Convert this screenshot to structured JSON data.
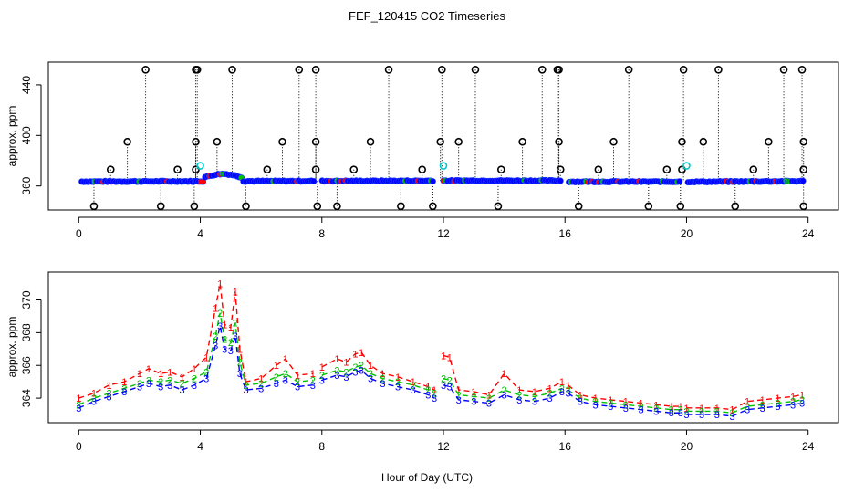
{
  "page": {
    "title": "FEF_120415  CO2 Timeseries",
    "xlabel": "Hour of Day (UTC)"
  },
  "colors": {
    "flagged": "#000000",
    "flagged_alt": "#00c8c8",
    "mean": "#0000ff",
    "s1": "#ff0000",
    "s2": "#00c000",
    "s3": "#0000ff",
    "axis": "#000000"
  },
  "chart_data": [
    {
      "type": "scatter",
      "panel": "top",
      "title": "FEF_120415  CO2 Timeseries",
      "ylabel": "approx. ppm",
      "xlim": [
        -1.0,
        25.0
      ],
      "ylim": [
        341,
        458
      ],
      "xticks": [
        0,
        4,
        8,
        12,
        16,
        20,
        24
      ],
      "yticks": [
        360,
        400,
        440
      ],
      "grid": false,
      "marker_sets": [
        {
          "name": "high flagged readings (~452)",
          "color": "black",
          "marker": "circle",
          "y": 452,
          "x": [
            2.2,
            3.85,
            3.9,
            5.05,
            7.25,
            7.8,
            10.2,
            11.95,
            13.05,
            15.25,
            15.75,
            15.8,
            18.1,
            19.9,
            21.05,
            23.2,
            23.8
          ]
        },
        {
          "name": "mid flagged readings (~395)",
          "color": "black",
          "marker": "circle",
          "y": 395,
          "x": [
            1.6,
            3.85,
            4.55,
            6.7,
            7.8,
            9.6,
            11.9,
            12.5,
            14.6,
            15.8,
            17.6,
            19.85,
            20.55,
            22.7,
            23.85
          ]
        },
        {
          "name": "low-mid flagged readings (~373)",
          "color": "black",
          "marker": "circle",
          "y": 373,
          "x": [
            1.05,
            3.25,
            3.85,
            6.2,
            7.8,
            9.05,
            11.3,
            13.9,
            15.85,
            17.1,
            19.35,
            19.85,
            22.2,
            23.85
          ]
        },
        {
          "name": "low flagged readings (~344)",
          "color": "black",
          "marker": "circle",
          "y": 344,
          "x": [
            0.5,
            2.7,
            3.8,
            5.5,
            7.85,
            8.5,
            10.6,
            11.65,
            13.8,
            16.45,
            18.75,
            19.8,
            21.6,
            23.85
          ]
        },
        {
          "name": "alternate flag (cyan)",
          "color": "cyan",
          "marker": "circle",
          "x": [
            4.0,
            12.0,
            20.0
          ],
          "y": [
            376,
            376,
            376
          ]
        }
      ],
      "baseline_series": {
        "name": "CO2 measurements",
        "color": "blue",
        "marker": "circle",
        "y_range": [
          362,
          370
        ],
        "x_range": [
          0.1,
          23.9
        ]
      }
    },
    {
      "type": "line",
      "panel": "bottom",
      "ylabel": "approx. ppm",
      "xlim": [
        -1.0,
        25.0
      ],
      "ylim": [
        362.5,
        371.7
      ],
      "xticks": [
        0,
        4,
        8,
        12,
        16,
        20,
        24
      ],
      "yticks": [
        364,
        366,
        368,
        370
      ],
      "grid": false,
      "gap_hours": [
        [
          7.8,
          8.0
        ],
        [
          11.7,
          12.0
        ],
        [
          15.9,
          16.1
        ],
        [
          19.8,
          20.0
        ]
      ],
      "series": [
        {
          "name": "1",
          "color": "red",
          "marker": "digit 1",
          "x": [
            0.0,
            0.5,
            1.0,
            1.5,
            2.0,
            2.3,
            2.7,
            3.0,
            3.4,
            3.8,
            4.2,
            4.5,
            4.65,
            4.8,
            5.0,
            5.15,
            5.3,
            5.5,
            6.0,
            6.5,
            6.8,
            7.2,
            7.7,
            8.0,
            8.5,
            8.8,
            9.1,
            9.3,
            9.6,
            10.0,
            10.5,
            11.0,
            11.5,
            11.7,
            12.0,
            12.2,
            12.5,
            13.0,
            13.5,
            14.0,
            14.5,
            15.0,
            15.5,
            15.9,
            16.1,
            16.5,
            17.0,
            17.5,
            18.0,
            18.5,
            19.0,
            19.5,
            19.8,
            20.0,
            20.5,
            21.0,
            21.5,
            22.0,
            22.5,
            23.0,
            23.5,
            23.8
          ],
          "values": [
            364.0,
            364.3,
            364.8,
            365.0,
            365.5,
            365.8,
            365.5,
            365.6,
            365.3,
            365.8,
            366.5,
            369.5,
            371.0,
            368.5,
            368.3,
            370.5,
            367.0,
            365.0,
            365.2,
            366.0,
            366.4,
            365.4,
            365.5,
            365.9,
            366.4,
            366.2,
            366.7,
            366.8,
            366.0,
            365.5,
            365.3,
            365.0,
            364.7,
            364.5,
            366.6,
            366.5,
            364.5,
            364.4,
            364.2,
            365.5,
            364.5,
            364.4,
            364.6,
            365.0,
            364.8,
            364.2,
            364.0,
            363.9,
            363.8,
            363.7,
            363.6,
            363.5,
            363.5,
            363.4,
            363.4,
            363.4,
            363.3,
            363.8,
            363.9,
            364.0,
            364.1,
            364.2
          ]
        },
        {
          "name": "2",
          "color": "green",
          "marker": "digit 2",
          "x": [
            0.0,
            0.5,
            1.0,
            1.5,
            2.0,
            2.3,
            2.7,
            3.0,
            3.4,
            3.8,
            4.2,
            4.5,
            4.65,
            4.8,
            5.0,
            5.15,
            5.3,
            5.5,
            6.0,
            6.5,
            6.8,
            7.2,
            7.7,
            8.0,
            8.5,
            8.8,
            9.1,
            9.3,
            9.6,
            10.0,
            10.5,
            11.0,
            11.5,
            11.7,
            12.0,
            12.2,
            12.5,
            13.0,
            13.5,
            14.0,
            14.5,
            15.0,
            15.5,
            15.9,
            16.1,
            16.5,
            17.0,
            17.5,
            18.0,
            18.5,
            19.0,
            19.5,
            19.8,
            20.0,
            20.5,
            21.0,
            21.5,
            22.0,
            22.5,
            23.0,
            23.5,
            23.8
          ],
          "values": [
            363.6,
            364.0,
            364.3,
            364.6,
            364.9,
            365.1,
            365.0,
            365.1,
            364.9,
            365.2,
            365.6,
            367.8,
            369.2,
            367.6,
            367.4,
            368.6,
            366.2,
            364.8,
            364.9,
            365.3,
            365.5,
            365.0,
            365.1,
            365.4,
            365.7,
            365.6,
            365.9,
            366.0,
            365.5,
            365.2,
            365.0,
            364.8,
            364.5,
            364.3,
            365.2,
            365.1,
            364.2,
            364.1,
            364.0,
            364.5,
            364.2,
            364.1,
            364.3,
            364.6,
            364.5,
            364.0,
            363.8,
            363.7,
            363.6,
            363.5,
            363.4,
            363.3,
            363.3,
            363.2,
            363.2,
            363.2,
            363.1,
            363.5,
            363.6,
            363.7,
            363.8,
            363.9
          ]
        },
        {
          "name": "3",
          "color": "blue",
          "marker": "digit 3",
          "x": [
            0.0,
            0.5,
            1.0,
            1.5,
            2.0,
            2.3,
            2.7,
            3.0,
            3.4,
            3.8,
            4.2,
            4.5,
            4.65,
            4.8,
            5.0,
            5.15,
            5.3,
            5.5,
            6.0,
            6.5,
            6.8,
            7.2,
            7.7,
            8.0,
            8.5,
            8.8,
            9.1,
            9.3,
            9.6,
            10.0,
            10.5,
            11.0,
            11.5,
            11.7,
            12.0,
            12.2,
            12.5,
            13.0,
            13.5,
            14.0,
            14.5,
            15.0,
            15.5,
            15.9,
            16.1,
            16.5,
            17.0,
            17.5,
            18.0,
            18.5,
            19.0,
            19.5,
            19.8,
            20.0,
            20.5,
            21.0,
            21.5,
            22.0,
            22.5,
            23.0,
            23.5,
            23.8
          ],
          "values": [
            363.4,
            363.8,
            364.1,
            364.4,
            364.7,
            364.9,
            364.7,
            364.8,
            364.5,
            364.8,
            365.2,
            367.2,
            368.4,
            367.0,
            366.9,
            367.8,
            365.5,
            364.5,
            364.6,
            364.9,
            365.1,
            364.7,
            364.8,
            365.1,
            365.4,
            365.3,
            365.6,
            365.7,
            365.2,
            364.9,
            364.7,
            364.5,
            364.2,
            364.0,
            364.8,
            364.7,
            363.9,
            363.8,
            363.7,
            364.2,
            363.9,
            363.8,
            364.0,
            364.4,
            364.3,
            363.8,
            363.6,
            363.5,
            363.4,
            363.3,
            363.2,
            363.1,
            363.1,
            363.0,
            363.0,
            363.0,
            362.9,
            363.3,
            363.4,
            363.5,
            363.6,
            363.7
          ]
        }
      ]
    }
  ]
}
